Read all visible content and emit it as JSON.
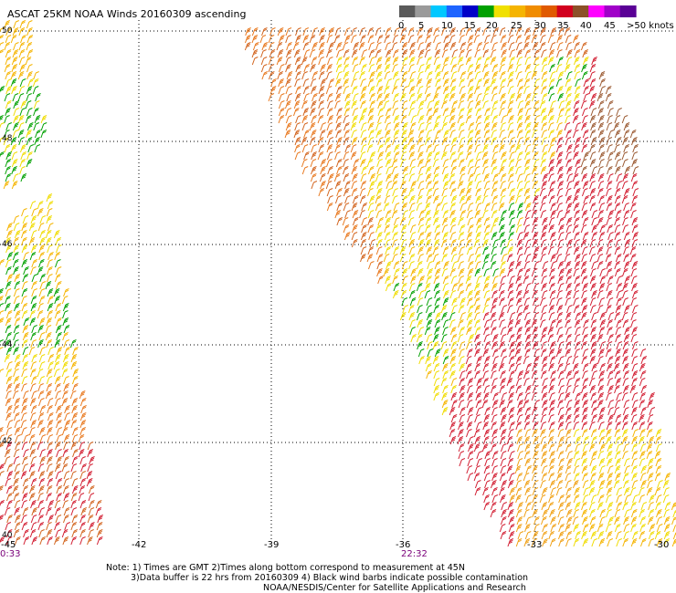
{
  "map": {
    "title": "ASCAT 25KM NOAA Winds 20160309 ascending",
    "legend": {
      "labels": [
        "0",
        "5",
        "10",
        "15",
        "20",
        "25",
        "30",
        "35",
        "40",
        "45",
        ">50 knots"
      ],
      "colors": [
        "#5a5a5a",
        "#9a9a9a",
        "#00c8ff",
        "#1e64ff",
        "#0000c8",
        "#00a000",
        "#f0e000",
        "#f5b400",
        "#f08c00",
        "#e05a00",
        "#d2001e",
        "#8c5028",
        "#ff00ff",
        "#a000c8",
        "#5a0096"
      ]
    },
    "lon_ticks": [
      "-45",
      "-42",
      "-39",
      "-36",
      "-33",
      "-30"
    ],
    "lat_ticks": [
      "50",
      "48",
      "46",
      "44",
      "42",
      "40"
    ],
    "pass_times": [
      "0:33",
      "22:32"
    ],
    "notes": [
      "Note: 1) Times are GMT 2)Times along bottom correspond to measurement at 45N",
      "3)Data buffer is 22 hrs from 20160309 4) Black wind barbs indicate possible contamination",
      "NOAA/NESDIS/Center for Satellite Applications and Research"
    ]
  }
}
